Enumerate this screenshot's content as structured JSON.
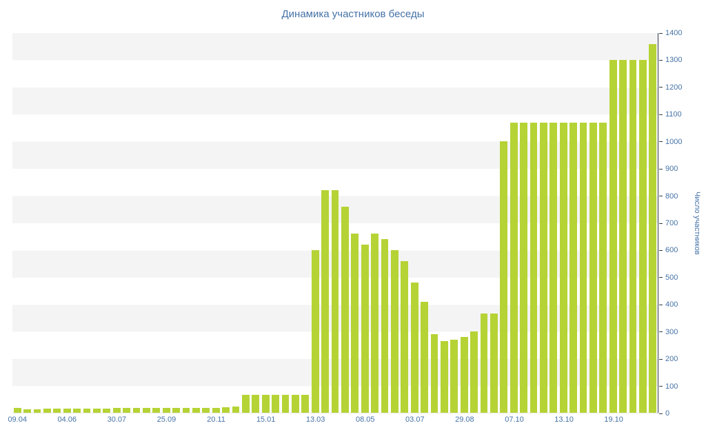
{
  "colors": {
    "bar": "#b5d335",
    "axis_text": "#4572a7",
    "stripe": "#f4f4f5",
    "axis_line": "#2c3a47"
  },
  "chart_data": {
    "type": "bar",
    "title": "Динамика участников беседы",
    "xlabel": "",
    "ylabel": "Число участников",
    "ylim": [
      0,
      1400
    ],
    "y_tick_step": 100,
    "grid": "striped-bands",
    "legend": "none",
    "y_axis_position": "right",
    "values": [
      18,
      14,
      14,
      15,
      15,
      15,
      16,
      16,
      16,
      16,
      17,
      17,
      17,
      17,
      18,
      18,
      18,
      18,
      19,
      19,
      19,
      20,
      22,
      65,
      65,
      65,
      65,
      65,
      65,
      65,
      600,
      820,
      820,
      760,
      660,
      620,
      660,
      640,
      600,
      560,
      480,
      410,
      290,
      265,
      270,
      280,
      300,
      365,
      365,
      1000,
      1070,
      1070,
      1070,
      1070,
      1070,
      1070,
      1070,
      1070,
      1070,
      1070,
      1300,
      1300,
      1300,
      1300,
      1360
    ],
    "x_ticks": [
      {
        "index": 0,
        "label": "09.04"
      },
      {
        "index": 5,
        "label": "04.06"
      },
      {
        "index": 10,
        "label": "30.07"
      },
      {
        "index": 15,
        "label": "25.09"
      },
      {
        "index": 20,
        "label": "20.11"
      },
      {
        "index": 25,
        "label": "15.01"
      },
      {
        "index": 30,
        "label": "13.03"
      },
      {
        "index": 35,
        "label": "08.05"
      },
      {
        "index": 40,
        "label": "03.07"
      },
      {
        "index": 45,
        "label": "29.08"
      },
      {
        "index": 50,
        "label": "07.10"
      },
      {
        "index": 55,
        "label": "13.10"
      },
      {
        "index": 60,
        "label": "19.10"
      }
    ]
  }
}
